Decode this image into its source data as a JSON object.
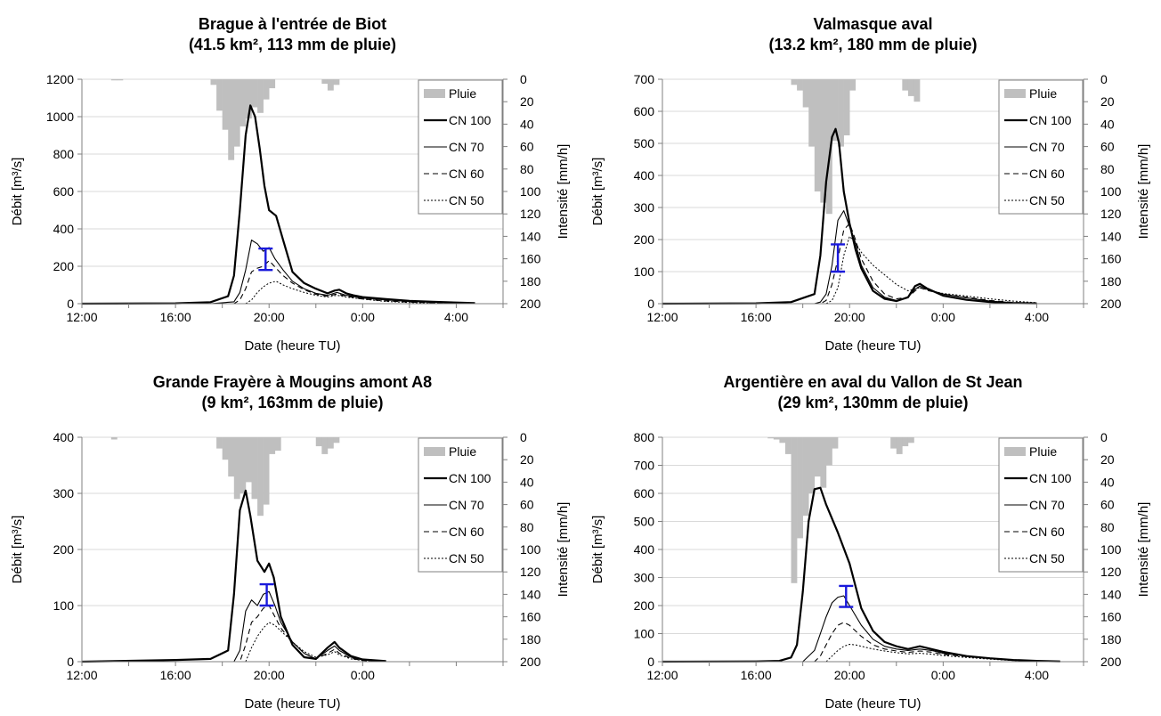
{
  "chart_data": [
    {
      "type": "line",
      "title_line1": "Brague à l'entrée de Biot",
      "title_line2": "(41.5 km², 113 mm de pluie)",
      "xlabel": "Date (heure TU)",
      "ylabel": "Débit [m³/s]",
      "ylabel2": "Intensité [mm/h]",
      "xlim": [
        12,
        30
      ],
      "x_ticks": [
        12,
        16,
        20,
        24,
        28
      ],
      "x_tick_labels": [
        "12:00",
        "16:00",
        "20:00",
        "0:00",
        "4:00"
      ],
      "ylim": [
        0,
        1200
      ],
      "y_ticks": [
        0,
        200,
        400,
        600,
        800,
        1000,
        1200
      ],
      "y2lim": [
        0,
        200
      ],
      "y2_ticks": [
        0,
        20,
        40,
        60,
        80,
        100,
        120,
        140,
        160,
        180,
        200
      ],
      "legend": [
        "Pluie",
        "CN 100",
        "CN 70",
        "CN 60",
        "CN 50"
      ],
      "rain": {
        "x": [
          13.25,
          13.5,
          17.5,
          17.75,
          18,
          18.25,
          18.5,
          18.75,
          19,
          19.25,
          19.5,
          19.75,
          20,
          22.25,
          22.5,
          22.75
        ],
        "width": 0.25,
        "values": [
          1,
          1,
          5,
          28,
          45,
          72,
          60,
          42,
          35,
          25,
          30,
          18,
          8,
          4,
          10,
          5
        ]
      },
      "series": [
        {
          "name": "CN 100",
          "x": [
            12,
            16,
            17.5,
            18.25,
            18.5,
            18.75,
            19,
            19.2,
            19.4,
            19.6,
            19.8,
            20,
            20.3,
            20.6,
            21,
            21.5,
            22,
            22.5,
            22.8,
            23,
            23.3,
            23.6,
            24,
            25,
            26,
            27,
            28,
            28.8
          ],
          "values": [
            0,
            2,
            8,
            40,
            150,
            500,
            900,
            1060,
            1000,
            830,
            630,
            500,
            470,
            340,
            170,
            110,
            80,
            55,
            70,
            75,
            55,
            45,
            35,
            25,
            15,
            10,
            6,
            3
          ]
        },
        {
          "name": "CN 70",
          "x": [
            12,
            17.5,
            18.5,
            18.75,
            19,
            19.25,
            19.5,
            19.75,
            20,
            20.25,
            20.6,
            21,
            21.5,
            22,
            22.5,
            22.9,
            23.3,
            24,
            25,
            26,
            27,
            28,
            28.8
          ],
          "values": [
            0,
            0,
            10,
            60,
            180,
            340,
            320,
            280,
            300,
            240,
            180,
            120,
            80,
            55,
            45,
            60,
            45,
            30,
            20,
            12,
            8,
            4,
            2
          ]
        },
        {
          "name": "CN 60",
          "x": [
            12,
            18.5,
            18.75,
            19,
            19.25,
            19.5,
            19.75,
            20,
            20.3,
            20.6,
            21,
            21.5,
            22,
            22.5,
            22.9,
            23.3,
            24,
            25,
            26,
            27,
            28,
            28.8
          ],
          "values": [
            0,
            0,
            20,
            80,
            170,
            190,
            200,
            230,
            190,
            150,
            110,
            75,
            50,
            40,
            52,
            40,
            25,
            15,
            8,
            5,
            3,
            1
          ]
        },
        {
          "name": "CN 50",
          "x": [
            12,
            19,
            19.25,
            19.5,
            19.75,
            20,
            20.3,
            20.6,
            21,
            21.5,
            22,
            22.5,
            22.9,
            23.3,
            24,
            25,
            26,
            27,
            28,
            28.8
          ],
          "values": [
            0,
            0,
            20,
            60,
            90,
            110,
            120,
            100,
            80,
            60,
            45,
            35,
            45,
            35,
            25,
            12,
            6,
            3,
            2,
            1
          ]
        }
      ],
      "observed": {
        "x": 19.85,
        "low": 180,
        "high": 295
      }
    },
    {
      "type": "line",
      "title_line1": "Valmasque aval",
      "title_line2": "(13.2 km², 180 mm de pluie)",
      "xlabel": "Date (heure TU)",
      "ylabel": "Débit [m³/s]",
      "ylabel2": "Intensité [mm/h]",
      "xlim": [
        12,
        30
      ],
      "x_ticks": [
        12,
        16,
        20,
        24,
        28
      ],
      "x_tick_labels": [
        "12:00",
        "16:00",
        "20:00",
        "0:00",
        "4:00"
      ],
      "ylim": [
        0,
        700
      ],
      "y_ticks": [
        0,
        100,
        200,
        300,
        400,
        500,
        600,
        700
      ],
      "y2lim": [
        0,
        200
      ],
      "y2_ticks": [
        0,
        20,
        40,
        60,
        80,
        100,
        120,
        140,
        160,
        180,
        200
      ],
      "legend": [
        "Pluie",
        "CN 100",
        "CN 70",
        "CN 60",
        "CN 50"
      ],
      "rain": {
        "x": [
          17.5,
          17.75,
          18,
          18.25,
          18.5,
          18.75,
          19,
          19.25,
          19.5,
          19.75,
          20,
          22.25,
          22.5,
          22.75
        ],
        "width": 0.25,
        "values": [
          5,
          10,
          25,
          60,
          100,
          110,
          120,
          55,
          60,
          50,
          10,
          10,
          15,
          20
        ]
      },
      "series": [
        {
          "name": "CN 100",
          "x": [
            12,
            16,
            17.5,
            18.5,
            18.75,
            19,
            19.25,
            19.4,
            19.55,
            19.75,
            20,
            20.25,
            20.5,
            21,
            21.5,
            22,
            22.5,
            22.8,
            23,
            23.3,
            24,
            25,
            26,
            27,
            28
          ],
          "values": [
            0,
            1,
            5,
            30,
            150,
            380,
            520,
            545,
            500,
            350,
            250,
            170,
            110,
            40,
            15,
            8,
            20,
            55,
            62,
            48,
            25,
            12,
            5,
            2,
            1
          ]
        },
        {
          "name": "CN 70",
          "x": [
            12,
            18.5,
            18.75,
            19,
            19.25,
            19.5,
            19.75,
            20,
            20.25,
            20.5,
            21,
            21.5,
            22,
            22.5,
            22.8,
            23,
            23.3,
            24,
            25,
            26,
            27,
            28
          ],
          "values": [
            0,
            0,
            5,
            30,
            120,
            260,
            290,
            240,
            190,
            120,
            50,
            20,
            10,
            20,
            45,
            55,
            45,
            30,
            18,
            8,
            3,
            1
          ]
        },
        {
          "name": "CN 60",
          "x": [
            12,
            18.75,
            19,
            19.25,
            19.5,
            19.75,
            20,
            20.25,
            20.5,
            21,
            21.5,
            22,
            22.5,
            22.8,
            23,
            23.3,
            24,
            25,
            26,
            27,
            28
          ],
          "values": [
            0,
            0,
            10,
            60,
            140,
            230,
            250,
            200,
            140,
            70,
            30,
            15,
            20,
            40,
            50,
            42,
            30,
            20,
            10,
            4,
            1
          ]
        },
        {
          "name": "CN 50",
          "x": [
            12,
            19,
            19.25,
            19.5,
            19.75,
            20,
            20.25,
            20.5,
            21,
            21.5,
            22,
            22.5,
            23,
            23.5,
            24,
            25,
            26,
            27,
            28
          ],
          "values": [
            0,
            0,
            10,
            50,
            150,
            210,
            190,
            160,
            120,
            90,
            60,
            40,
            50,
            40,
            32,
            24,
            15,
            8,
            3
          ]
        }
      ],
      "observed": {
        "x": 19.5,
        "low": 100,
        "high": 185
      }
    },
    {
      "type": "line",
      "title_line1": "Grande Frayère à Mougins amont A8",
      "title_line2": "(9 km², 163mm de pluie)",
      "xlabel": "Date (heure TU)",
      "ylabel": "Débit [m³/s]",
      "ylabel2": "Intensité [mm/h]",
      "xlim": [
        12,
        30
      ],
      "x_ticks": [
        12,
        16,
        20,
        24
      ],
      "x_tick_labels": [
        "12:00",
        "16:00",
        "20:00",
        "0:00"
      ],
      "ylim": [
        0,
        400
      ],
      "y_ticks": [
        0,
        100,
        200,
        300,
        400
      ],
      "y2lim": [
        0,
        200
      ],
      "y2_ticks": [
        0,
        20,
        40,
        60,
        80,
        100,
        120,
        140,
        160,
        180,
        200
      ],
      "legend": [
        "Pluie",
        "CN 100",
        "CN 70",
        "CN 60",
        "CN 50"
      ],
      "rain": {
        "x": [
          13.25,
          17.75,
          18,
          18.25,
          18.5,
          18.75,
          19,
          19.25,
          19.5,
          19.75,
          20,
          20.25,
          22,
          22.25,
          22.5,
          22.75
        ],
        "width": 0.25,
        "values": [
          2,
          10,
          20,
          35,
          55,
          50,
          40,
          55,
          70,
          60,
          15,
          12,
          8,
          15,
          10,
          5
        ]
      },
      "series": [
        {
          "name": "CN 100",
          "x": [
            12,
            16,
            17.5,
            18.25,
            18.5,
            18.75,
            19,
            19.2,
            19.5,
            19.8,
            20,
            20.2,
            20.5,
            21,
            21.5,
            22,
            22.5,
            22.8,
            23,
            23.5,
            24,
            25
          ],
          "values": [
            0,
            3,
            5,
            20,
            120,
            270,
            305,
            260,
            180,
            160,
            175,
            150,
            80,
            30,
            8,
            5,
            25,
            35,
            25,
            10,
            4,
            1
          ]
        },
        {
          "name": "CN 70",
          "x": [
            12,
            18.5,
            18.75,
            19,
            19.25,
            19.5,
            19.75,
            20,
            20.25,
            20.5,
            21,
            21.5,
            22,
            22.5,
            22.8,
            23,
            23.5,
            24,
            25
          ],
          "values": [
            0,
            0,
            20,
            90,
            110,
            100,
            120,
            125,
            100,
            70,
            35,
            15,
            5,
            20,
            28,
            20,
            8,
            3,
            1
          ]
        },
        {
          "name": "CN 60",
          "x": [
            12,
            18.75,
            19,
            19.25,
            19.5,
            19.75,
            20,
            20.25,
            20.5,
            21,
            21.5,
            22,
            22.5,
            22.8,
            23,
            23.5,
            24,
            25
          ],
          "values": [
            0,
            0,
            30,
            70,
            80,
            95,
            100,
            80,
            60,
            35,
            15,
            5,
            15,
            22,
            15,
            6,
            2,
            0
          ]
        },
        {
          "name": "CN 50",
          "x": [
            12,
            19,
            19.25,
            19.5,
            19.75,
            20,
            20.25,
            20.5,
            21,
            21.5,
            22,
            22.5,
            22.8,
            23,
            23.5,
            24,
            25
          ],
          "values": [
            0,
            0,
            25,
            45,
            60,
            70,
            65,
            55,
            35,
            18,
            8,
            12,
            18,
            12,
            5,
            2,
            0
          ]
        }
      ],
      "observed": {
        "x": 19.9,
        "low": 100,
        "high": 138
      }
    },
    {
      "type": "line",
      "title_line1": "Argentière en aval du Vallon de St Jean",
      "title_line2": "(29 km², 130mm de pluie)",
      "xlabel": "Date (heure TU)",
      "ylabel": "Débit [m³/s]",
      "ylabel2": "Intensité [mm/h]",
      "xlim": [
        12,
        30
      ],
      "x_ticks": [
        12,
        16,
        20,
        24,
        28
      ],
      "x_tick_labels": [
        "12:00",
        "16:00",
        "20:00",
        "0:00",
        "4:00"
      ],
      "ylim": [
        0,
        800
      ],
      "y_ticks": [
        0,
        100,
        200,
        300,
        400,
        500,
        600,
        700,
        800
      ],
      "y2lim": [
        0,
        200
      ],
      "y2_ticks": [
        0,
        20,
        40,
        60,
        80,
        100,
        120,
        140,
        160,
        180,
        200
      ],
      "legend": [
        "Pluie",
        "CN 100",
        "CN 70",
        "CN 60",
        "CN 50"
      ],
      "rain": {
        "x": [
          16.5,
          16.75,
          17,
          17.25,
          17.5,
          17.75,
          18,
          18.25,
          18.5,
          18.75,
          19,
          19.25,
          21.75,
          22,
          22.25,
          22.5
        ],
        "width": 0.25,
        "values": [
          1,
          2,
          5,
          15,
          130,
          90,
          70,
          50,
          35,
          45,
          25,
          10,
          10,
          15,
          8,
          5
        ]
      },
      "series": [
        {
          "name": "CN 100",
          "x": [
            12,
            16,
            17,
            17.5,
            17.75,
            18,
            18.25,
            18.5,
            18.75,
            19,
            19.5,
            20,
            20.5,
            21,
            21.5,
            22,
            22.5,
            23,
            23.5,
            24,
            25,
            26,
            27,
            28,
            29
          ],
          "values": [
            0,
            1,
            3,
            15,
            60,
            250,
            500,
            615,
            620,
            560,
            460,
            350,
            190,
            110,
            70,
            55,
            45,
            55,
            45,
            35,
            20,
            12,
            6,
            3,
            1
          ]
        },
        {
          "name": "CN 70",
          "x": [
            12,
            18,
            18.5,
            18.75,
            19,
            19.25,
            19.5,
            19.75,
            20,
            20.5,
            21,
            21.5,
            22,
            22.5,
            23,
            23.5,
            24,
            25,
            26,
            27,
            28,
            29
          ],
          "values": [
            0,
            0,
            40,
            100,
            160,
            210,
            230,
            235,
            200,
            130,
            80,
            55,
            45,
            40,
            45,
            40,
            30,
            20,
            12,
            6,
            3,
            1
          ]
        },
        {
          "name": "CN 60",
          "x": [
            12,
            18.5,
            18.75,
            19,
            19.25,
            19.5,
            19.75,
            20,
            20.25,
            20.5,
            21,
            21.5,
            22,
            22.5,
            23,
            23.5,
            24,
            25,
            26,
            27,
            28,
            29
          ],
          "values": [
            0,
            0,
            20,
            60,
            100,
            130,
            140,
            130,
            110,
            90,
            60,
            45,
            38,
            33,
            38,
            34,
            26,
            18,
            11,
            5,
            2,
            1
          ]
        },
        {
          "name": "CN 50",
          "x": [
            12,
            19,
            19.25,
            19.5,
            19.75,
            20,
            20.25,
            20.5,
            21,
            21.5,
            22,
            22.5,
            23,
            23.5,
            24,
            25,
            26,
            27,
            28,
            29
          ],
          "values": [
            0,
            0,
            20,
            40,
            55,
            62,
            60,
            55,
            45,
            38,
            32,
            28,
            30,
            27,
            22,
            15,
            9,
            4,
            2,
            1
          ]
        }
      ],
      "observed": {
        "x": 19.85,
        "low": 195,
        "high": 270
      }
    }
  ]
}
